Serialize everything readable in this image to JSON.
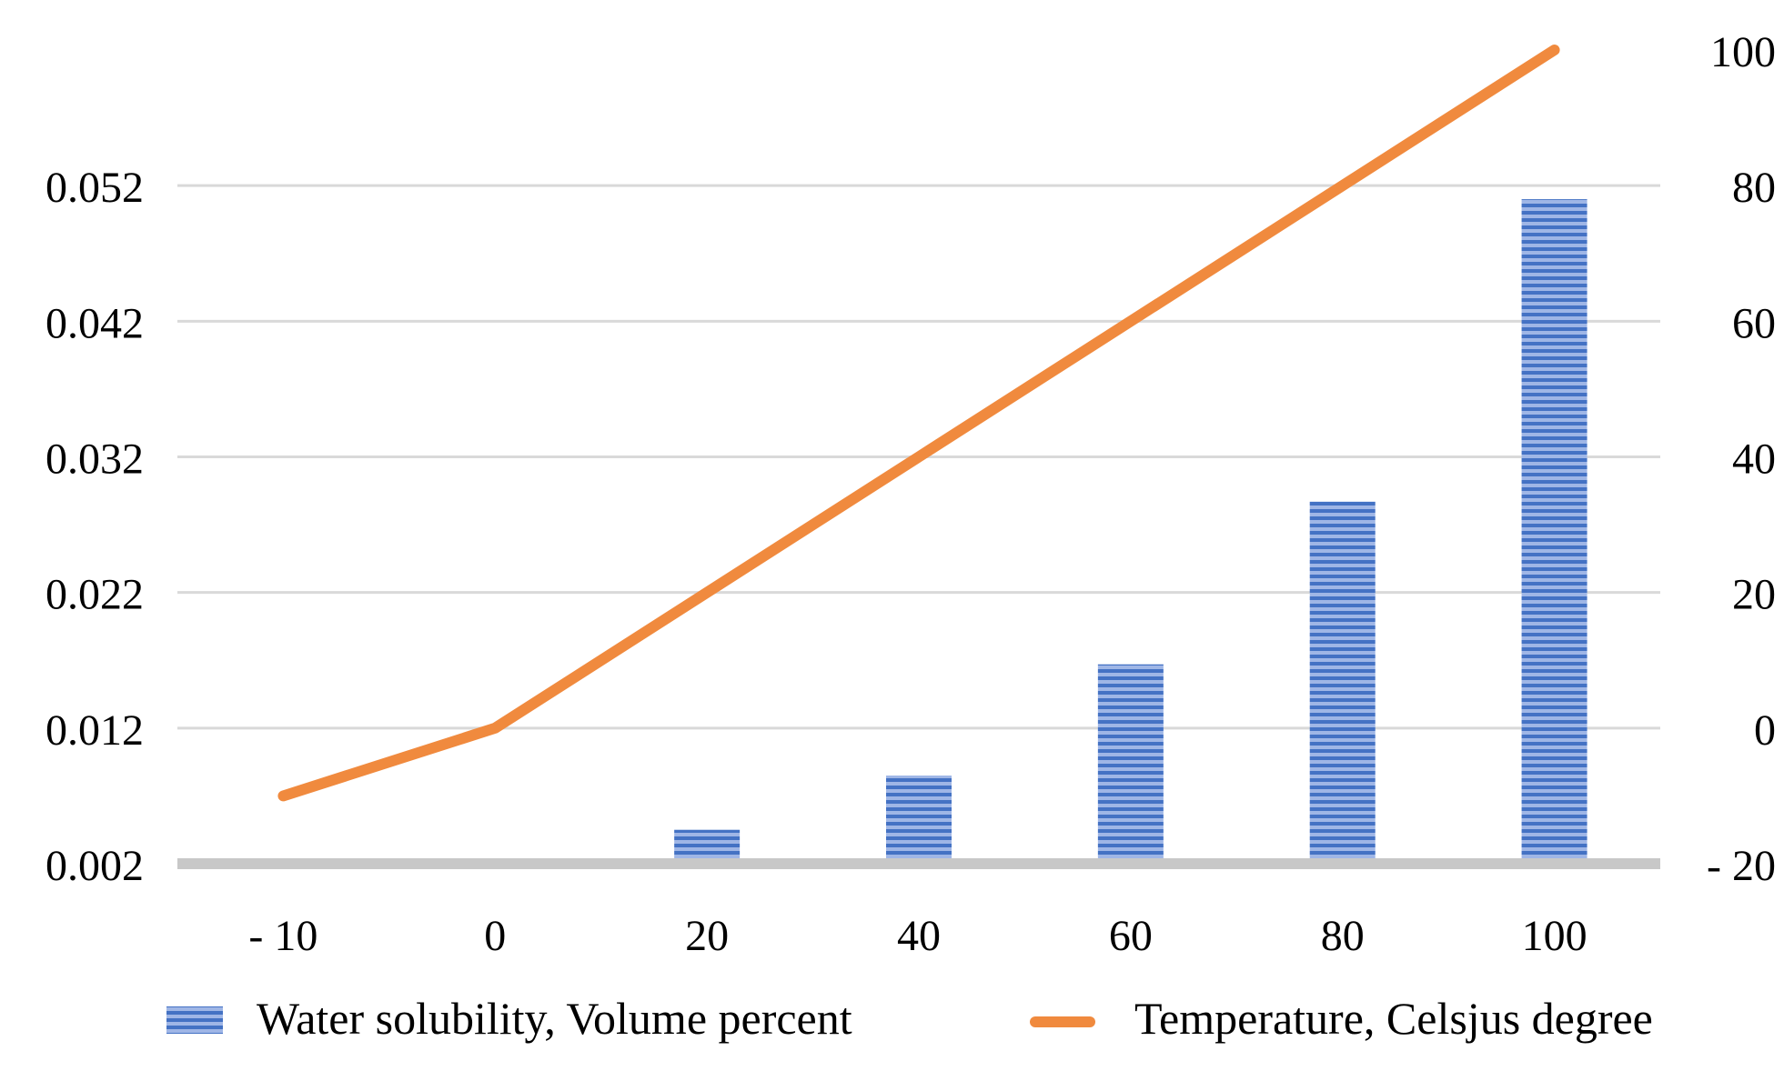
{
  "chart_data": {
    "type": "bar",
    "title": "",
    "categories": [
      "- 10",
      "0",
      "20",
      "40",
      "60",
      "80",
      "100"
    ],
    "series": [
      {
        "name": "Water solubility, Volume percent",
        "kind": "bar",
        "axis": "left",
        "color": "#4472C4",
        "values": [
          0.0,
          0.0024,
          0.0045,
          0.0085,
          0.0167,
          0.0287,
          0.051
        ]
      },
      {
        "name": "Temperature, Celsjus degree",
        "kind": "line",
        "axis": "right",
        "color": "#F08A3E",
        "values": [
          -10,
          0,
          20,
          40,
          60,
          80,
          100
        ]
      }
    ],
    "y_left": {
      "label": "",
      "ylim": [
        0.002,
        0.062
      ],
      "ticks": [
        "0.002",
        "0.012",
        "0.022",
        "0.032",
        "0.042",
        "0.052"
      ]
    },
    "y_right": {
      "label": "",
      "ylim": [
        -20,
        100
      ],
      "ticks": [
        "- 20",
        "0",
        "20",
        "40",
        "60",
        "80",
        "100"
      ]
    },
    "grid": true,
    "legend_position": "bottom"
  }
}
